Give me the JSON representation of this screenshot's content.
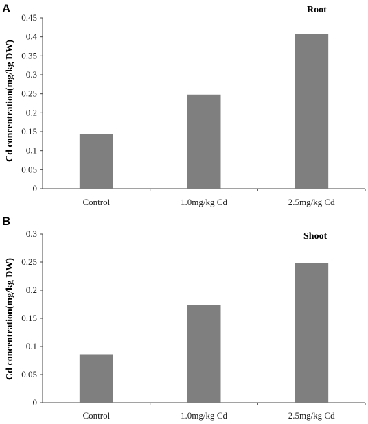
{
  "chart_data": [
    {
      "panel": "A",
      "type": "bar",
      "title": "Root",
      "ylabel": "Cd concentration(mg/kg DW)",
      "xlabel": "",
      "categories": [
        "Control",
        "1.0mg/kg Cd",
        "2.5mg/kg Cd"
      ],
      "values": [
        0.143,
        0.248,
        0.407
      ],
      "ylim": [
        0,
        0.45
      ],
      "yticks": [
        "0",
        "0.05",
        "0.1",
        "0.15",
        "0.2",
        "0.25",
        "0.3",
        "0.35",
        "0.4",
        "0.45"
      ],
      "bar_color": "#7f7f7f",
      "grid": false
    },
    {
      "panel": "B",
      "type": "bar",
      "title": "Shoot",
      "ylabel": "Cd concentration(mg/kg DW)",
      "xlabel": "",
      "categories": [
        "Control",
        "1.0mg/kg Cd",
        "2.5mg/kg Cd"
      ],
      "values": [
        0.086,
        0.174,
        0.248
      ],
      "ylim": [
        0,
        0.3
      ],
      "yticks": [
        "0",
        "0.05",
        "0.1",
        "0.15",
        "0.2",
        "0.25",
        "0.3"
      ],
      "bar_color": "#7f7f7f",
      "grid": false
    }
  ]
}
